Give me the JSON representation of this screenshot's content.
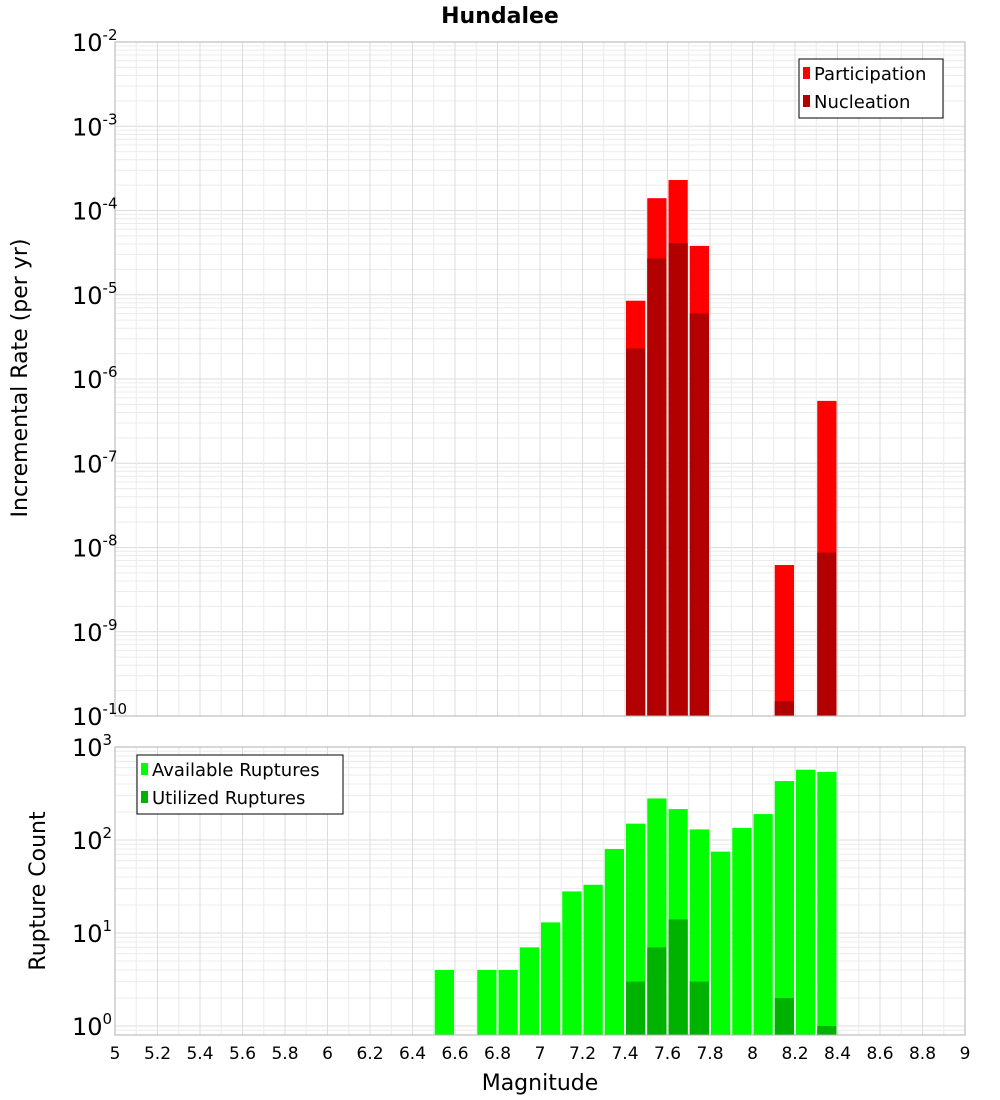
{
  "title": "Hundalee",
  "xlabel": "Magnitude",
  "chart_data": [
    {
      "type": "bar",
      "panel": "top",
      "ylabel": "Incremental Rate (per yr)",
      "yscale": "log",
      "ylim": [
        1e-10,
        0.01
      ],
      "xlim": [
        5,
        9
      ],
      "grid": true,
      "legend_position": "top-right",
      "x": [
        7.45,
        7.55,
        7.65,
        7.75,
        8.15,
        8.35
      ],
      "series": [
        {
          "name": "Participation",
          "color": "#ff0000",
          "values": [
            8.5e-06,
            0.00014,
            0.00023,
            3.8e-05,
            6.2e-09,
            5.5e-07
          ]
        },
        {
          "name": "Nucleation",
          "color": "#b20000",
          "values": [
            2.3e-06,
            2.7e-05,
            4.1e-05,
            6e-06,
            1.5e-10,
            8.7e-09
          ]
        }
      ]
    },
    {
      "type": "bar",
      "panel": "bottom",
      "ylabel": "Rupture Count",
      "yscale": "log",
      "ylim": [
        0.8,
        1000
      ],
      "xlim": [
        5,
        9
      ],
      "grid": true,
      "legend_position": "top-left",
      "x": [
        6.55,
        6.75,
        6.85,
        6.95,
        7.05,
        7.15,
        7.25,
        7.35,
        7.45,
        7.55,
        7.65,
        7.75,
        7.85,
        7.95,
        8.05,
        8.15,
        8.25,
        8.35
      ],
      "series": [
        {
          "name": "Available Ruptures",
          "color": "#00ff00",
          "values": [
            4,
            4,
            4,
            7,
            13,
            28,
            33,
            80,
            150,
            280,
            215,
            130,
            75,
            135,
            190,
            430,
            570,
            540
          ]
        },
        {
          "name": "Utilized Ruptures",
          "color": "#00b200",
          "values": [
            null,
            null,
            null,
            null,
            null,
            null,
            null,
            null,
            3,
            7,
            14,
            3,
            null,
            null,
            null,
            2,
            null,
            1
          ]
        }
      ]
    }
  ],
  "x_ticks": [
    "5",
    "5.2",
    "5.4",
    "5.6",
    "5.8",
    "6",
    "6.2",
    "6.4",
    "6.6",
    "6.8",
    "7",
    "7.2",
    "7.4",
    "7.6",
    "7.8",
    "8",
    "8.2",
    "8.4",
    "8.6",
    "8.8",
    "9"
  ],
  "top_y_ticks": [
    {
      "base": "10",
      "exp": "-2"
    },
    {
      "base": "10",
      "exp": "-3"
    },
    {
      "base": "10",
      "exp": "-4"
    },
    {
      "base": "10",
      "exp": "-5"
    },
    {
      "base": "10",
      "exp": "-6"
    },
    {
      "base": "10",
      "exp": "-7"
    },
    {
      "base": "10",
      "exp": "-8"
    },
    {
      "base": "10",
      "exp": "-9"
    },
    {
      "base": "10",
      "exp": "-10"
    }
  ],
  "bottom_y_ticks": [
    {
      "base": "10",
      "exp": "3"
    },
    {
      "base": "10",
      "exp": "2"
    },
    {
      "base": "10",
      "exp": "1"
    },
    {
      "base": "10",
      "exp": "0"
    }
  ]
}
